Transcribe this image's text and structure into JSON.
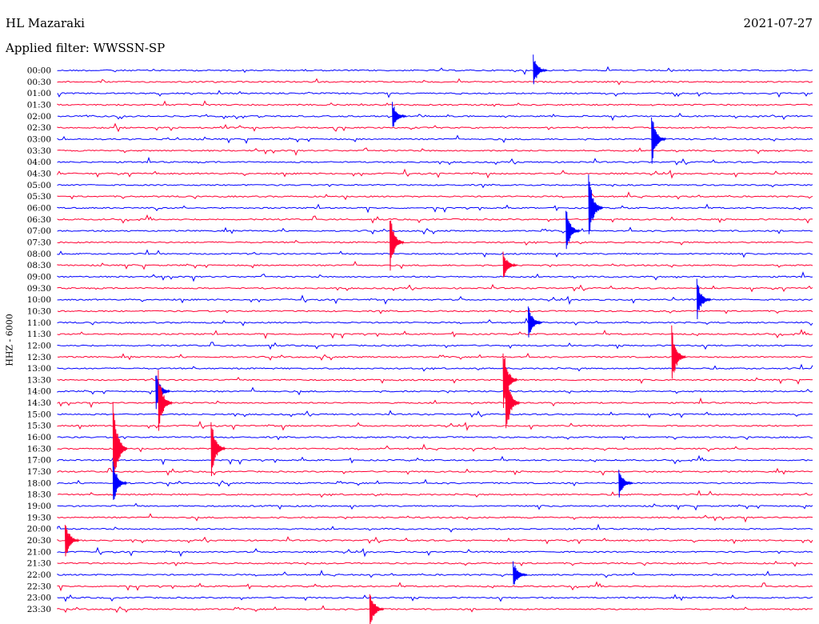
{
  "header": {
    "station": "HL Mazaraki",
    "date": "2021-07-27",
    "filter": "Applied filter: WWSSN-SP"
  },
  "chart_data": {
    "type": "line",
    "description_kind": "helicorder",
    "ylabel": "HHZ - 6000",
    "row_labels": [
      "00:00",
      "00:30",
      "01:00",
      "01:30",
      "02:00",
      "02:30",
      "03:00",
      "03:30",
      "04:00",
      "04:30",
      "05:00",
      "05:30",
      "06:00",
      "06:30",
      "07:00",
      "07:30",
      "08:00",
      "08:30",
      "09:00",
      "09:30",
      "10:00",
      "10:30",
      "11:00",
      "11:30",
      "12:00",
      "12:30",
      "13:00",
      "13:30",
      "14:00",
      "14:30",
      "15:00",
      "15:30",
      "16:00",
      "16:30",
      "17:00",
      "17:30",
      "18:00",
      "18:30",
      "19:00",
      "19:30",
      "20:00",
      "20:30",
      "21:00",
      "21:30",
      "22:00",
      "22:30",
      "23:00",
      "23:30"
    ],
    "series_colors": [
      "#0000ff",
      "#ff0033"
    ],
    "line_minutes": 30,
    "events": [
      {
        "row": 0,
        "minute": 18.9,
        "amplitude": 1.6
      },
      {
        "row": 4,
        "minute": 13.3,
        "amplitude": 1.4
      },
      {
        "row": 6,
        "minute": 23.6,
        "amplitude": 2.6
      },
      {
        "row": 12,
        "minute": 21.1,
        "amplitude": 3.4
      },
      {
        "row": 14,
        "minute": 20.2,
        "amplitude": 2.3
      },
      {
        "row": 15,
        "minute": 13.2,
        "amplitude": 2.8
      },
      {
        "row": 17,
        "minute": 17.7,
        "amplitude": 1.4
      },
      {
        "row": 20,
        "minute": 25.4,
        "amplitude": 2.0
      },
      {
        "row": 22,
        "minute": 18.7,
        "amplitude": 1.8
      },
      {
        "row": 25,
        "minute": 24.4,
        "amplitude": 3.0
      },
      {
        "row": 27,
        "minute": 17.7,
        "amplitude": 3.2
      },
      {
        "row": 28,
        "minute": 3.9,
        "amplitude": 2.2
      },
      {
        "row": 29,
        "minute": 4.0,
        "amplitude": 3.0
      },
      {
        "row": 29,
        "minute": 17.8,
        "amplitude": 3.6
      },
      {
        "row": 33,
        "minute": 2.2,
        "amplitude": 4.8
      },
      {
        "row": 33,
        "minute": 6.1,
        "amplitude": 3.0
      },
      {
        "row": 36,
        "minute": 2.2,
        "amplitude": 2.2
      },
      {
        "row": 36,
        "minute": 22.3,
        "amplitude": 1.6
      },
      {
        "row": 41,
        "minute": 0.3,
        "amplitude": 2.0
      },
      {
        "row": 44,
        "minute": 18.1,
        "amplitude": 1.4
      },
      {
        "row": 47,
        "minute": 12.4,
        "amplitude": 2.0
      }
    ],
    "grid": false
  }
}
